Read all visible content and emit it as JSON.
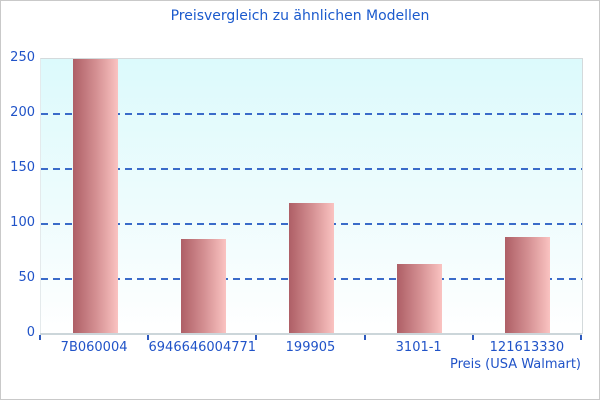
{
  "chart_data": {
    "type": "bar",
    "title": "Preisvergleich zu ähnlichen Modellen",
    "categories": [
      "7B060004",
      "6946646004771",
      "199905",
      "3101-1",
      "121613330"
    ],
    "values": [
      250,
      86,
      119,
      64,
      88
    ],
    "xlabel": "Preis (USA Walmart)",
    "ylabel": "",
    "ylim": [
      0,
      250
    ],
    "yticks": [
      0,
      50,
      100,
      150,
      200,
      250
    ],
    "grid": "horizontal-dashed",
    "legend": "none",
    "colors": {
      "title_text": "#1b5acd",
      "axis_text": "#2053c8",
      "gridline": "#3a6bc9",
      "bar_gradient_left": "#ae5f66",
      "bar_gradient_right": "#fac3c1",
      "plot_bg_top": "#dcfafc",
      "plot_bg_bottom": "#ffffff",
      "plot_border": "#d4dadc",
      "figure_border": "#c9c9c9"
    }
  }
}
